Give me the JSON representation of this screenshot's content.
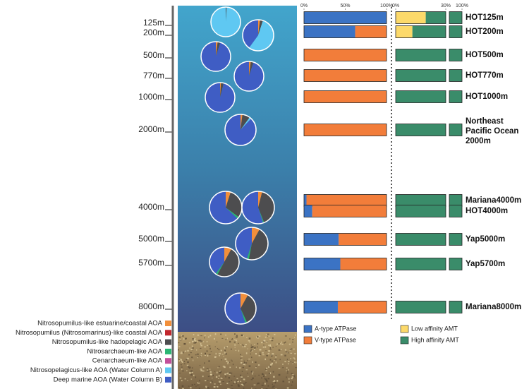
{
  "chart_data": [
    {
      "type": "pie",
      "categories": [
        "Nitrosopumilus-like estuarine/coastal AOA",
        "Nitrosopumilus (Nitrosomarinus)-like coastal AOA",
        "Nitrosopumilus-like hadopelagic AOA",
        "Nitrosarchaeum-like AOA",
        "Cenarchaeum-like AOA",
        "Nitrosopelagicus-like AOA (Water Column A)",
        "Deep marine AOA (Water Column B)"
      ],
      "colors": [
        "#f28f3b",
        "#c1272d",
        "#4d4d4f",
        "#2bb673",
        "#c2509a",
        "#5fc8f2",
        "#3f5dc4"
      ],
      "depth_labels": [
        "125m",
        "200m",
        "500m",
        "770m",
        "1000m",
        "2000m",
        "4000m",
        "5000m",
        "5700m",
        "8000m"
      ],
      "pies": [
        {
          "values": [
            0,
            0,
            1,
            0,
            0,
            99,
            0
          ]
        },
        {
          "values": [
            2,
            0,
            3,
            0,
            0,
            55,
            40
          ]
        },
        {
          "values": [
            2,
            0,
            3,
            0,
            0,
            0,
            95
          ]
        },
        {
          "values": [
            2,
            0,
            3,
            0,
            0,
            0,
            95
          ]
        },
        {
          "values": [
            1,
            0,
            3,
            0,
            0,
            0,
            96
          ]
        },
        {
          "values": [
            2,
            0,
            8,
            0,
            0,
            2,
            88
          ]
        },
        {
          "values": [
            5,
            0,
            30,
            2,
            0,
            0,
            63
          ]
        },
        {
          "values": [
            4,
            0,
            40,
            1,
            0,
            0,
            55
          ]
        },
        {
          "values": [
            8,
            0,
            45,
            2,
            0,
            0,
            45
          ]
        },
        {
          "values": [
            8,
            0,
            50,
            2,
            0,
            0,
            40
          ]
        },
        {
          "values": [
            8,
            0,
            35,
            2,
            0,
            0,
            55
          ]
        }
      ]
    },
    {
      "type": "bar",
      "stacked": true,
      "orientation": "horizontal",
      "xlim": [
        0,
        100
      ],
      "xticks": [
        {
          "value": 0,
          "label": "0%"
        },
        {
          "value": 50,
          "label": "50%"
        },
        {
          "value": 100,
          "label": "100%"
        }
      ],
      "series": [
        {
          "name": "A-type ATPase",
          "color": "#3b73c4",
          "values": [
            100,
            62,
            0,
            0,
            0,
            0,
            3,
            10,
            42,
            44,
            41
          ]
        },
        {
          "name": "V-type ATPase",
          "color": "#f27d3a",
          "values": [
            0,
            38,
            100,
            100,
            100,
            100,
            97,
            90,
            58,
            56,
            59
          ]
        }
      ]
    },
    {
      "type": "bar",
      "stacked": true,
      "orientation": "horizontal",
      "categories": [
        "HOT125m",
        "HOT200m",
        "HOT500m",
        "HOT770m",
        "HOT1000m",
        "Northeast Pacific Ocean 2000m",
        "Mariana4000m",
        "HOT4000m",
        "Yap5000m",
        "Yap5700m",
        "Mariana8000m"
      ],
      "xlim": [
        0,
        100
      ],
      "xbreak": [
        30,
        92
      ],
      "xticks": [
        {
          "value": 0,
          "label": "0%"
        },
        {
          "value": 30,
          "label": "30%"
        },
        {
          "value": 100,
          "label": "100%"
        }
      ],
      "series": [
        {
          "name": "Low affinity AMT",
          "color": "#fcd96a",
          "values": [
            18,
            10,
            0,
            0,
            0,
            0,
            0,
            0,
            0,
            0,
            0
          ]
        },
        {
          "name": "High affinity AMT",
          "color": "#3a8c6a",
          "values": [
            82,
            90,
            100,
            100,
            100,
            100,
            100,
            100,
            100,
            100,
            100
          ]
        }
      ]
    }
  ]
}
